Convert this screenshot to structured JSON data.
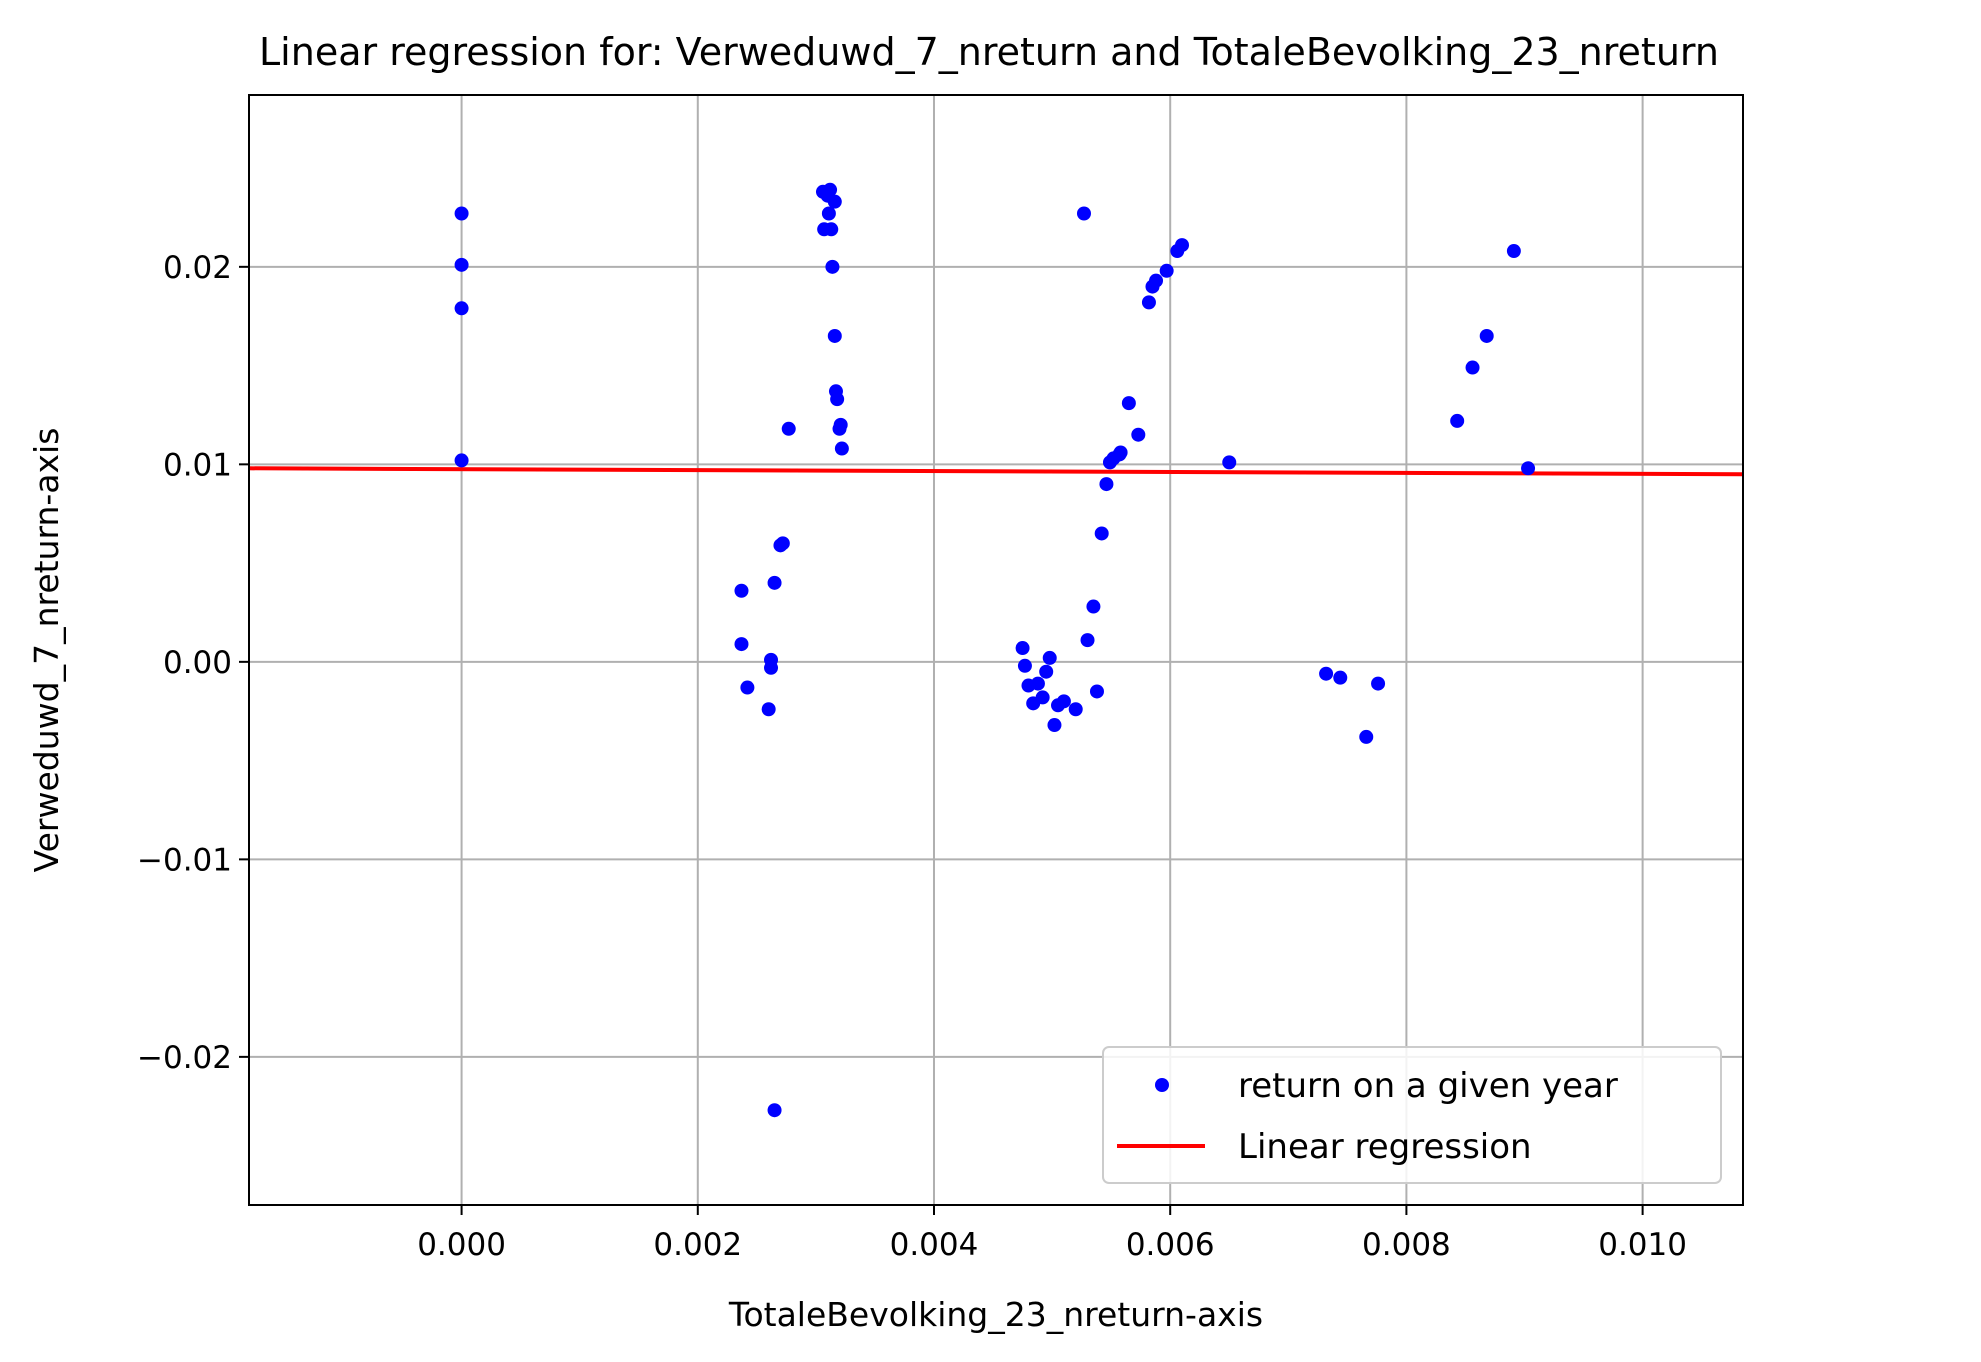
{
  "chart_data": {
    "type": "scatter",
    "title": "Linear regression for: Verweduwd_7_nreturn and TotaleBevolking_23_nreturn",
    "xlabel": "TotaleBevolking_23_nreturn-axis",
    "ylabel": "Verweduwd_7_nreturn-axis",
    "xlim": [
      -0.0018,
      0.01085
    ],
    "ylim": [
      -0.0275,
      0.0287
    ],
    "xticks": [
      0.0,
      0.002,
      0.004,
      0.006,
      0.008,
      0.01
    ],
    "xtick_labels": [
      "0.000",
      "0.002",
      "0.004",
      "0.006",
      "0.008",
      "0.010"
    ],
    "yticks": [
      -0.02,
      -0.01,
      0.0,
      0.01,
      0.02
    ],
    "ytick_labels": [
      "−0.02",
      "−0.01",
      "0.00",
      "0.01",
      "0.02"
    ],
    "grid": true,
    "legend_position": "bottom-right",
    "series": [
      {
        "name": "return on a given year",
        "kind": "scatter",
        "color": "#0000ff",
        "points": [
          [
            0.0,
            0.0227
          ],
          [
            0.0,
            0.0201
          ],
          [
            0.0,
            0.0179
          ],
          [
            0.0,
            0.0102
          ],
          [
            0.00237,
            0.0036
          ],
          [
            0.00237,
            0.0009
          ],
          [
            0.00242,
            -0.0013
          ],
          [
            0.0026,
            -0.0024
          ],
          [
            0.00262,
            0.0001
          ],
          [
            0.00262,
            -0.0003
          ],
          [
            0.00265,
            0.004
          ],
          [
            0.00265,
            -0.0227
          ],
          [
            0.0027,
            0.0059
          ],
          [
            0.00272,
            0.006
          ],
          [
            0.00277,
            0.0118
          ],
          [
            0.00306,
            0.0238
          ],
          [
            0.0031,
            0.0236
          ],
          [
            0.00312,
            0.0239
          ],
          [
            0.00316,
            0.0233
          ],
          [
            0.00307,
            0.0219
          ],
          [
            0.00313,
            0.0219
          ],
          [
            0.00311,
            0.0227
          ],
          [
            0.00314,
            0.02
          ],
          [
            0.00316,
            0.0165
          ],
          [
            0.00317,
            0.0137
          ],
          [
            0.00318,
            0.0133
          ],
          [
            0.00321,
            0.012
          ],
          [
            0.0032,
            0.0118
          ],
          [
            0.00322,
            0.0108
          ],
          [
            0.00475,
            0.0007
          ],
          [
            0.00477,
            -0.0002
          ],
          [
            0.0048,
            -0.0012
          ],
          [
            0.00484,
            -0.0021
          ],
          [
            0.00488,
            -0.0011
          ],
          [
            0.00492,
            -0.0018
          ],
          [
            0.00495,
            -0.0005
          ],
          [
            0.00498,
            0.0002
          ],
          [
            0.00502,
            -0.0032
          ],
          [
            0.00505,
            -0.0022
          ],
          [
            0.0051,
            -0.002
          ],
          [
            0.0052,
            -0.0024
          ],
          [
            0.00527,
            0.0227
          ],
          [
            0.0053,
            0.0011
          ],
          [
            0.00535,
            0.0028
          ],
          [
            0.00538,
            -0.0015
          ],
          [
            0.00542,
            0.0065
          ],
          [
            0.00546,
            0.009
          ],
          [
            0.00549,
            0.0101
          ],
          [
            0.00552,
            0.0103
          ],
          [
            0.00557,
            0.0105
          ],
          [
            0.00558,
            0.0106
          ],
          [
            0.00565,
            0.0131
          ],
          [
            0.00573,
            0.0115
          ],
          [
            0.00582,
            0.0182
          ],
          [
            0.00585,
            0.019
          ],
          [
            0.00588,
            0.0193
          ],
          [
            0.00597,
            0.0198
          ],
          [
            0.00606,
            0.0208
          ],
          [
            0.0061,
            0.0211
          ],
          [
            0.0065,
            0.0101
          ],
          [
            0.00732,
            -0.0006
          ],
          [
            0.00744,
            -0.0008
          ],
          [
            0.00766,
            -0.0038
          ],
          [
            0.00776,
            -0.0011
          ],
          [
            0.00843,
            0.0122
          ],
          [
            0.00856,
            0.0149
          ],
          [
            0.00868,
            0.0165
          ],
          [
            0.00891,
            0.0208
          ],
          [
            0.00903,
            0.0098
          ]
        ]
      },
      {
        "name": "Linear regression",
        "kind": "line",
        "color": "#ff0000",
        "points": [
          [
            -0.0018,
            0.0098
          ],
          [
            0.01085,
            0.0095
          ]
        ]
      }
    ]
  }
}
